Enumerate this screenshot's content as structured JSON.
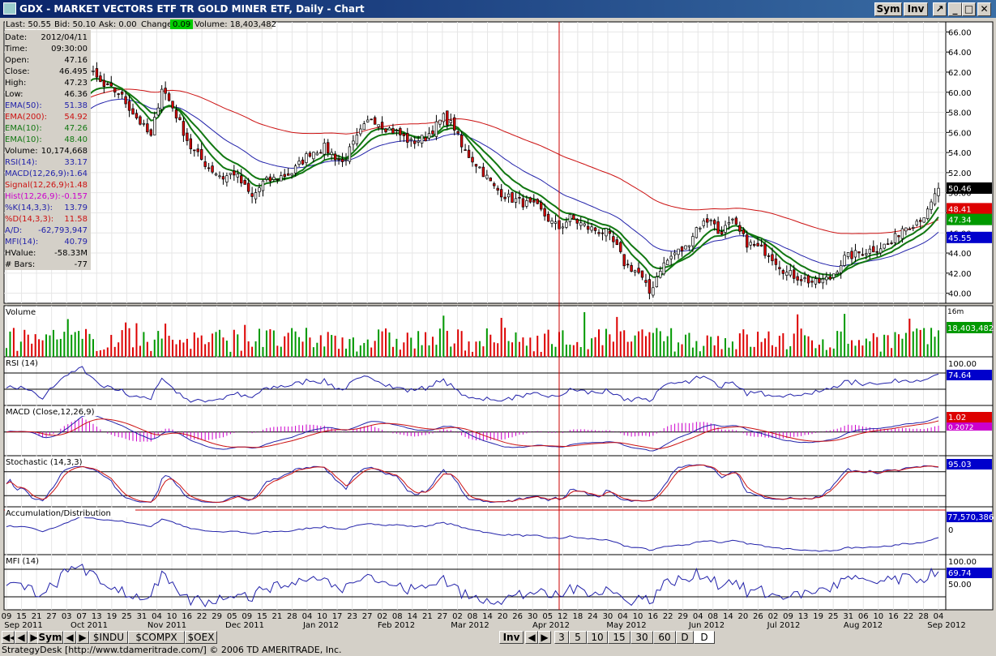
{
  "window": {
    "title": "GDX - MARKET VECTORS ETF TR GOLD MINER ETF, Daily - Chart",
    "buttons": {
      "sym": "Sym",
      "inv": "Inv"
    }
  },
  "quote_bar": {
    "last": "Last: 50.55",
    "bid": "Bid: 50.10",
    "ask": "Ask: 0.00",
    "change_label": "Change:",
    "change_value": "0.09",
    "volume": "Volume: 18,403,482"
  },
  "data_box": [
    {
      "label": "Date:",
      "value": "2012/04/11",
      "color": "#000000"
    },
    {
      "label": "Time:",
      "value": "09:30:00",
      "color": "#000000"
    },
    {
      "label": "Open:",
      "value": "47.16",
      "color": "#000000"
    },
    {
      "label": "Close:",
      "value": "46.495",
      "color": "#000000"
    },
    {
      "label": "High:",
      "value": "47.23",
      "color": "#000000"
    },
    {
      "label": "Low:",
      "value": "46.36",
      "color": "#000000"
    },
    {
      "label": "EMA(50):",
      "value": "51.38",
      "color": "#2222aa"
    },
    {
      "label": "EMA(200):",
      "value": "54.92",
      "color": "#cc1111"
    },
    {
      "label": "EMA(10):",
      "value": "47.26",
      "color": "#117711"
    },
    {
      "label": "EMA(10):",
      "value": "48.40",
      "color": "#117711"
    },
    {
      "label": "Volume:",
      "value": "10,174,668",
      "color": "#000000"
    },
    {
      "label": "RSI(14):",
      "value": "33.17",
      "color": "#2222aa"
    },
    {
      "label": "MACD(12,26,9):",
      "value": "-1.64",
      "color": "#2222aa"
    },
    {
      "label": "Signal(12,26,9):",
      "value": "-1.48",
      "color": "#cc1111"
    },
    {
      "label": "Hist(12,26,9):",
      "value": "-0.157",
      "color": "#cc00cc"
    },
    {
      "label": "%K(14,3,3):",
      "value": "13.79",
      "color": "#2222aa"
    },
    {
      "label": "%D(14,3,3):",
      "value": "11.58",
      "color": "#cc1111"
    },
    {
      "label": "A/D:",
      "value": "-62,793,947",
      "color": "#2222aa"
    },
    {
      "label": "MFI(14):",
      "value": "40.79",
      "color": "#2222aa"
    },
    {
      "label": "HValue:",
      "value": "-58.33M",
      "color": "#000000"
    },
    {
      "label": "# Bars:",
      "value": "-77",
      "color": "#000000"
    }
  ],
  "chart_data": [
    {
      "type": "candlestick",
      "title": "GDX - MARKET VECTORS ETF TR GOLD MINER ETF, Daily - Chart",
      "y_ticks": [
        "40.00",
        "42.00",
        "44.00",
        "46.00",
        "48.00",
        "50.00",
        "52.00",
        "54.00",
        "56.00",
        "58.00",
        "60.00",
        "62.00",
        "64.00",
        "66.00"
      ],
      "ylim": [
        39,
        67
      ],
      "price_anchors": [
        {
          "date": "2011-09-09",
          "close": 57.0
        },
        {
          "date": "2011-09-19",
          "close": 56.5
        },
        {
          "date": "2011-09-23",
          "close": 53.5
        },
        {
          "date": "2011-09-29",
          "close": 56.5
        },
        {
          "date": "2011-10-04",
          "close": 59.5
        },
        {
          "date": "2011-10-10",
          "close": 63.0
        },
        {
          "date": "2011-10-18",
          "close": 60.5
        },
        {
          "date": "2011-10-24",
          "close": 60.0
        },
        {
          "date": "2011-10-31",
          "close": 57.5
        },
        {
          "date": "2011-11-04",
          "close": 55.5
        },
        {
          "date": "2011-11-09",
          "close": 60.5
        },
        {
          "date": "2011-11-14",
          "close": 58.5
        },
        {
          "date": "2011-11-21",
          "close": 54.5
        },
        {
          "date": "2011-11-28",
          "close": 52.5
        },
        {
          "date": "2011-12-02",
          "close": 51.5
        },
        {
          "date": "2011-12-07",
          "close": 52.0
        },
        {
          "date": "2011-12-14",
          "close": 49.5
        },
        {
          "date": "2011-12-19",
          "close": 51.0
        },
        {
          "date": "2011-12-29",
          "close": 52.0
        },
        {
          "date": "2012-01-05",
          "close": 54.0
        },
        {
          "date": "2012-01-11",
          "close": 54.5
        },
        {
          "date": "2012-01-18",
          "close": 53.0
        },
        {
          "date": "2012-01-25",
          "close": 56.0
        },
        {
          "date": "2012-01-30",
          "close": 57.5
        },
        {
          "date": "2012-02-03",
          "close": 56.5
        },
        {
          "date": "2012-02-08",
          "close": 56.0
        },
        {
          "date": "2012-02-14",
          "close": 55.0
        },
        {
          "date": "2012-02-20",
          "close": 55.5
        },
        {
          "date": "2012-02-27",
          "close": 57.5
        },
        {
          "date": "2012-03-01",
          "close": 56.5
        },
        {
          "date": "2012-03-05",
          "close": 54.5
        },
        {
          "date": "2012-03-12",
          "close": 52.5
        },
        {
          "date": "2012-03-16",
          "close": 50.5
        },
        {
          "date": "2012-03-22",
          "close": 49.5
        },
        {
          "date": "2012-03-28",
          "close": 49.0
        },
        {
          "date": "2012-04-03",
          "close": 48.5
        },
        {
          "date": "2012-04-09",
          "close": 47.0
        },
        {
          "date": "2012-04-11",
          "close": 46.5
        },
        {
          "date": "2012-04-16",
          "close": 47.5
        },
        {
          "date": "2012-04-23",
          "close": 46.5
        },
        {
          "date": "2012-04-30",
          "close": 46.0
        },
        {
          "date": "2012-05-03",
          "close": 44.5
        },
        {
          "date": "2012-05-07",
          "close": 43.0
        },
        {
          "date": "2012-05-11",
          "close": 42.0
        },
        {
          "date": "2012-05-16",
          "close": 40.0
        },
        {
          "date": "2012-05-21",
          "close": 42.5
        },
        {
          "date": "2012-05-25",
          "close": 44.0
        },
        {
          "date": "2012-05-30",
          "close": 44.5
        },
        {
          "date": "2012-06-04",
          "close": 46.5
        },
        {
          "date": "2012-06-08",
          "close": 47.5
        },
        {
          "date": "2012-06-12",
          "close": 46.0
        },
        {
          "date": "2012-06-18",
          "close": 47.0
        },
        {
          "date": "2012-06-22",
          "close": 45.0
        },
        {
          "date": "2012-06-27",
          "close": 44.5
        },
        {
          "date": "2012-07-02",
          "close": 44.0
        },
        {
          "date": "2012-07-09",
          "close": 42.0
        },
        {
          "date": "2012-07-13",
          "close": 41.5
        },
        {
          "date": "2012-07-19",
          "close": 41.0
        },
        {
          "date": "2012-07-25",
          "close": 41.5
        },
        {
          "date": "2012-07-31",
          "close": 43.5
        },
        {
          "date": "2012-08-06",
          "close": 44.0
        },
        {
          "date": "2012-08-13",
          "close": 44.5
        },
        {
          "date": "2012-08-17",
          "close": 45.0
        },
        {
          "date": "2012-08-22",
          "close": 46.5
        },
        {
          "date": "2012-08-27",
          "close": 47.0
        },
        {
          "date": "2012-08-31",
          "close": 48.0
        },
        {
          "date": "2012-09-05",
          "close": 50.5
        }
      ],
      "series": [
        {
          "name": "EMA(50)",
          "color": "#2222aa"
        },
        {
          "name": "EMA(200)",
          "color": "#cc1111"
        },
        {
          "name": "EMA(10)",
          "color": "#117711"
        }
      ],
      "right_labels": [
        {
          "value": "50.46",
          "bg": "#000000",
          "fg": "#ffffff"
        },
        {
          "value": "48.41",
          "bg": "#dd0000",
          "fg": "#ffffff"
        },
        {
          "value": "47.34",
          "bg": "#009900",
          "fg": "#ffffff"
        },
        {
          "value": "45.55",
          "bg": "#0000cc",
          "fg": "#ffffff"
        }
      ],
      "cursor_date": "2012-04-11"
    },
    {
      "type": "bar",
      "title": "Volume",
      "last_value": "18,403,482",
      "axis_label": "16m"
    },
    {
      "type": "line",
      "title": "RSI (14)",
      "y_ticks": [
        "100.00"
      ],
      "last_value": "74.64"
    },
    {
      "type": "line",
      "title": "MACD (Close,12,26,9)",
      "series": [
        "MACD",
        "Signal",
        "Hist"
      ],
      "last_values": [
        "1.02",
        "0.2072"
      ]
    },
    {
      "type": "line",
      "title": "Stochastic (14,3,3)",
      "series": [
        "%K",
        "%D"
      ],
      "last_value": "95.03"
    },
    {
      "type": "line",
      "title": "Accumulation/Distribution",
      "y_ticks": [
        "0"
      ],
      "last_value": "77,570,386"
    },
    {
      "type": "line",
      "title": "MFI (14)",
      "y_ticks": [
        "100.00",
        "50.00"
      ],
      "last_value": "69.74"
    }
  ],
  "x_axis": {
    "days": [
      "09",
      "15",
      "21",
      "27",
      "03",
      "07",
      "13",
      "19",
      "25",
      "31",
      "04",
      "10",
      "16",
      "22",
      "29",
      "05",
      "09",
      "15",
      "21",
      "28",
      "04",
      "10",
      "17",
      "23",
      "27",
      "02",
      "08",
      "14",
      "21",
      "27",
      "02",
      "08",
      "14",
      "20",
      "26",
      "30",
      "05",
      "12",
      "18",
      "24",
      "30",
      "04",
      "10",
      "16",
      "22",
      "29",
      "04",
      "08",
      "14",
      "20",
      "26",
      "02",
      "09",
      "13",
      "19",
      "25",
      "31",
      "06",
      "10",
      "16",
      "22",
      "28",
      "04"
    ],
    "months": [
      "Sep 2011",
      "Oct 2011",
      "Nov 2011",
      "Dec 2011",
      "Jan 2012",
      "Feb 2012",
      "Mar 2012",
      "Apr 2012",
      "May 2012",
      "Jun 2012",
      "Jul 2012",
      "Aug 2012",
      "Sep 2012"
    ]
  },
  "bottom_bar": {
    "sym_label": "Sym",
    "watchlist": [
      "$INDU",
      "$COMPX",
      "$OEX"
    ],
    "inv_label": "Inv",
    "intervals": [
      "3",
      "5",
      "10",
      "15",
      "30",
      "60",
      "D",
      "D"
    ]
  },
  "status": "StrategyDesk [http://www.tdameritrade.com/] © 2006 TD AMERITRADE, Inc."
}
